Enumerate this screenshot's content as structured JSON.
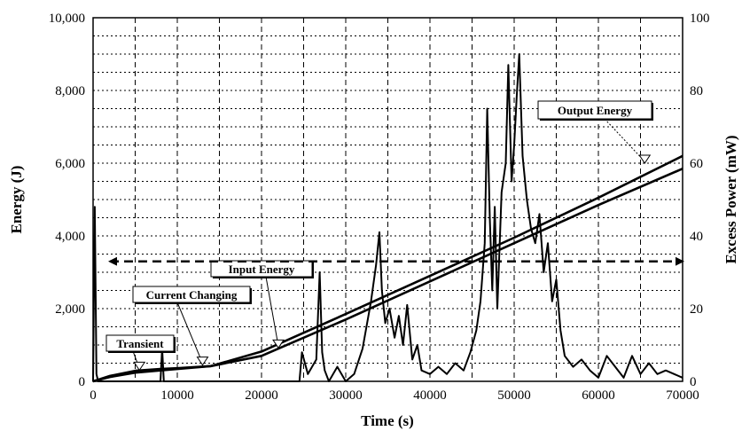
{
  "chart_data": {
    "type": "line",
    "xlabel": "Time (s)",
    "ylabel": "Energy (J)",
    "y2label": "Excess Power (mW)",
    "xlim": [
      0,
      70000
    ],
    "ylim": [
      0,
      10000
    ],
    "y2lim": [
      0,
      100
    ],
    "x_ticks": [
      0,
      10000,
      20000,
      30000,
      40000,
      50000,
      60000,
      70000
    ],
    "x_tick_labels": [
      "0",
      "10000",
      "20000",
      "30000",
      "40000",
      "50000",
      "60000",
      "70000"
    ],
    "y_ticks": [
      0,
      2000,
      4000,
      6000,
      8000,
      10000
    ],
    "y_tick_labels": [
      "0",
      "2,000",
      "4,000",
      "6,000",
      "8,000",
      "10,000"
    ],
    "y2_ticks": [
      0,
      20,
      40,
      60,
      80,
      100
    ],
    "y2_tick_labels": [
      "0",
      "20",
      "40",
      "60",
      "80",
      "100"
    ],
    "grid": true,
    "series": [
      {
        "axis": "left",
        "x": [
          0,
          2000,
          5000,
          8000,
          10000,
          14000,
          20000,
          30000,
          40000,
          50000,
          60000,
          70000
        ],
        "values": [
          0,
          150,
          290,
          340,
          360,
          420,
          820,
          1850,
          2900,
          3950,
          5050,
          6200
        ]
      },
      {
        "axis": "left",
        "x": [
          0,
          2000,
          5000,
          8000,
          10000,
          14000,
          20000,
          30000,
          40000,
          50000,
          60000,
          70000
        ],
        "values": [
          0,
          120,
          240,
          300,
          340,
          420,
          700,
          1700,
          2750,
          3800,
          4850,
          5850
        ]
      },
      {
        "axis": "right",
        "x": [
          0,
          200,
          400,
          600,
          1000,
          3000,
          8000,
          8200,
          8400,
          10000,
          24500,
          24800,
          25500,
          26500,
          26900,
          27200,
          27500,
          28000,
          29000,
          30000,
          31000,
          32000,
          33000,
          33600,
          34000,
          34300,
          34700,
          35200,
          35800,
          36300,
          36800,
          37300,
          37900,
          38500,
          39000,
          40000,
          41000,
          42000,
          43000,
          44000,
          44800,
          45500,
          46000,
          46500,
          46800,
          47100,
          47400,
          47700,
          48000,
          48500,
          49000,
          49300,
          49700,
          50000,
          50300,
          50600,
          51000,
          51500,
          52000,
          52500,
          53000,
          53500,
          54000,
          54500,
          55000,
          55500,
          56000,
          57000,
          58000,
          59000,
          60000,
          61000,
          62000,
          63000,
          64000,
          65000,
          66000,
          67000,
          68000,
          69000,
          70000
        ],
        "values": [
          0,
          48,
          2,
          0,
          0,
          0,
          0,
          9,
          0,
          0,
          0,
          8,
          2,
          6,
          30,
          8,
          3,
          0,
          4,
          0,
          2,
          9,
          22,
          32,
          41,
          25,
          16,
          20,
          12,
          18,
          10,
          21,
          6,
          10,
          3,
          2,
          4,
          2,
          5,
          3,
          8,
          14,
          22,
          38,
          75,
          45,
          25,
          48,
          20,
          52,
          60,
          87,
          55,
          65,
          78,
          90,
          62,
          50,
          42,
          38,
          46,
          30,
          38,
          22,
          28,
          14,
          7,
          4,
          6,
          3,
          1,
          7,
          4,
          1,
          7,
          2,
          5,
          2,
          3,
          2,
          1
        ]
      }
    ],
    "annotations": [
      {
        "label": "Output Energy",
        "pointer_to": [
          65500,
          5950
        ]
      },
      {
        "label": "Input Energy",
        "pointer_to": [
          22000,
          870
        ]
      },
      {
        "label": "Current Changing",
        "pointer_to": [
          13000,
          400
        ]
      },
      {
        "label": "Transient",
        "pointer_to": [
          5500,
          260
        ]
      },
      {
        "label": "",
        "arrow": "double",
        "x": [
          2000,
          70000
        ],
        "y": 3300
      }
    ]
  }
}
